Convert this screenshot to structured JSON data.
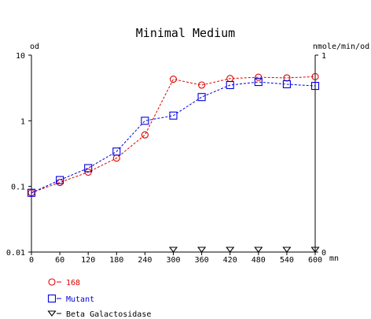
{
  "chart_data": {
    "type": "line",
    "title": "Minimal Medium",
    "left_axis_unit": "od",
    "right_axis_unit": "nmole/min/od",
    "x_unit": "mn",
    "x_ticks": [
      "0",
      "60",
      "120",
      "180",
      "240",
      "300",
      "360",
      "420",
      "480",
      "540",
      "600"
    ],
    "x_values": [
      0,
      60,
      120,
      180,
      240,
      300,
      360,
      420,
      480,
      540,
      600
    ],
    "xlim": [
      0,
      600
    ],
    "y_left_ticks": [
      "10",
      "1",
      "0.1",
      "0.01"
    ],
    "y_left_tick_values": [
      10,
      1,
      0.1,
      0.01
    ],
    "ylim_left": [
      0.01,
      10
    ],
    "y_left_scale": "log",
    "y_right_ticks": [
      "1",
      "0"
    ],
    "y_right_tick_values": [
      1,
      0
    ],
    "ylim_right": [
      0,
      1
    ],
    "legend_position": "bottom-left",
    "series": [
      {
        "name": "168",
        "axis": "left",
        "marker": "circle",
        "color": "#e00000",
        "x": [
          0,
          60,
          120,
          180,
          240,
          300,
          360,
          420,
          480,
          540,
          600
        ],
        "values": [
          0.08,
          0.115,
          0.165,
          0.27,
          0.61,
          4.3,
          3.5,
          4.4,
          4.6,
          4.5,
          4.7
        ]
      },
      {
        "name": "Mutant",
        "axis": "left",
        "marker": "square",
        "color": "#0000e0",
        "x": [
          0,
          60,
          120,
          180,
          240,
          300,
          360,
          420,
          480,
          540,
          600
        ],
        "values": [
          0.08,
          0.125,
          0.19,
          0.34,
          1.0,
          1.2,
          2.3,
          3.5,
          3.9,
          3.6,
          3.4
        ]
      },
      {
        "name": "Beta Galactosidase",
        "axis": "right",
        "marker": "triangle-down",
        "color": "#000000",
        "x": [
          300,
          360,
          420,
          480,
          540,
          600
        ],
        "values": [
          0,
          0,
          0,
          0,
          0,
          0
        ]
      }
    ]
  }
}
